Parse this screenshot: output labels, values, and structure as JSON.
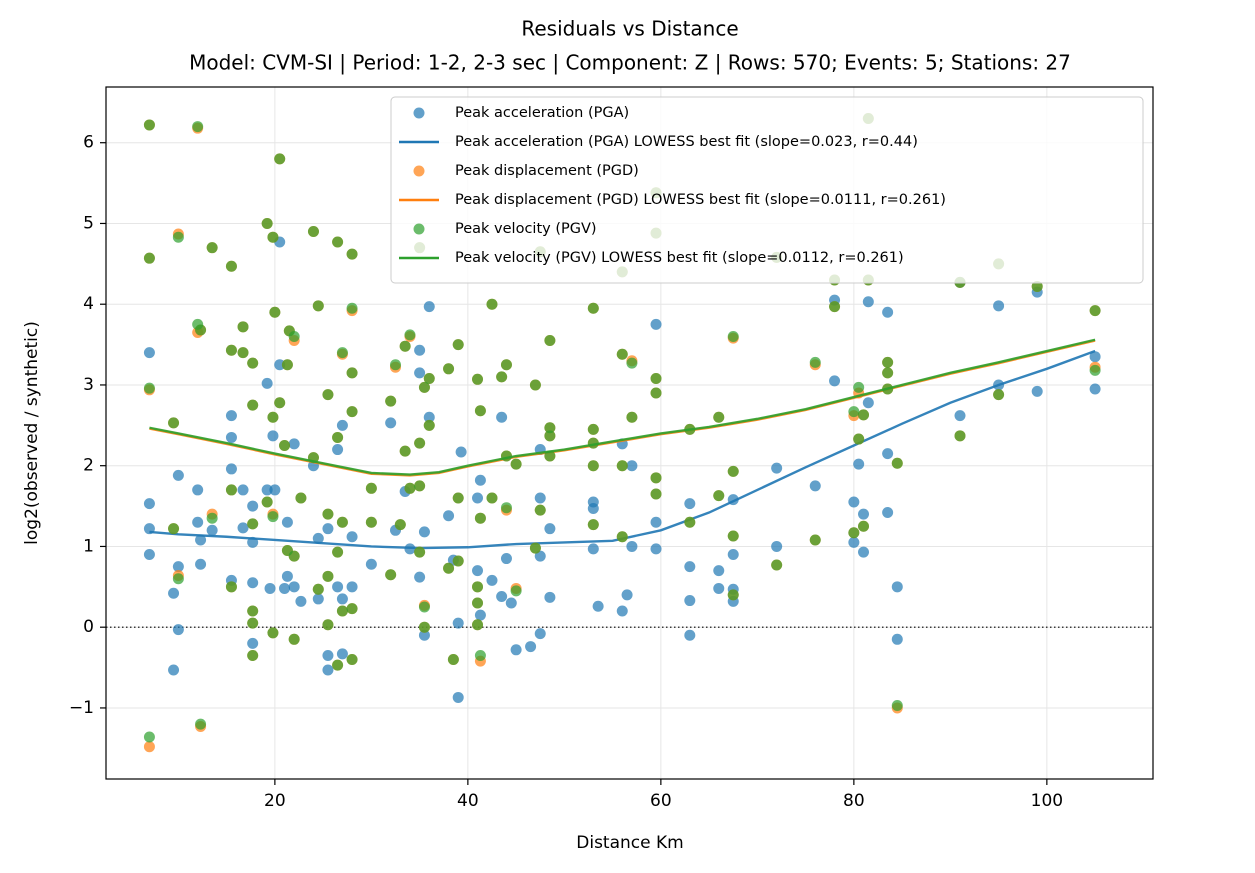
{
  "chart_data": {
    "type": "scatter",
    "title": "Residuals vs Distance",
    "subtitle": "Model: CVM-SI | Period: 1-2, 2-3 sec | Component: Z | Rows: 570; Events: 5; Stations: 27",
    "x_label": "Distance Km",
    "y_label": "log2(observed / synthetic)",
    "xlim": [
      2.5,
      111
    ],
    "ylim": [
      -1.88,
      6.69
    ],
    "xticks": [
      20,
      40,
      60,
      80,
      100
    ],
    "yticks": [
      {
        "value": -1,
        "label": "−1"
      },
      0,
      1,
      2,
      3,
      4,
      5,
      6
    ],
    "grid": true,
    "reference_line": 0,
    "legend": "upper right",
    "series": [
      {
        "name": "Peak acceleration (PGA)",
        "type": "scatter",
        "color": "#1f77b4",
        "x": [
          7,
          7,
          7,
          7,
          9.5,
          9.5,
          10,
          10,
          10,
          12,
          12,
          12.3,
          12.3,
          13.5,
          15.5,
          15.5,
          15.5,
          15.5,
          16.7,
          16.7,
          17.7,
          17.7,
          17.7,
          17.7,
          19.2,
          19.2,
          19.5,
          19.8,
          20,
          20.5,
          20.5,
          21,
          21.3,
          21.3,
          22,
          22,
          22.7,
          24,
          24.5,
          24.5,
          25.5,
          25.5,
          25.5,
          26.5,
          26.5,
          27,
          27,
          27,
          28,
          28,
          30,
          32,
          32.5,
          33.5,
          34,
          35,
          35,
          35,
          35.5,
          35.5,
          36,
          36,
          38,
          38.5,
          39,
          39,
          39.3,
          41,
          41,
          41.3,
          41.3,
          42.5,
          43.5,
          43.5,
          44,
          44.5,
          45,
          46.5,
          47.5,
          47.5,
          47.5,
          47.5,
          48.5,
          48.5,
          53,
          53,
          53,
          53.5,
          56,
          56,
          56.5,
          57,
          57,
          59.5,
          59.5,
          59.5,
          63,
          63,
          63,
          63,
          66,
          66,
          67.5,
          67.5,
          67.5,
          67.5,
          72,
          72,
          76,
          78,
          78,
          80,
          80,
          80.5,
          81,
          81,
          81.5,
          81.5,
          83.5,
          83.5,
          83.5,
          84.5,
          84.5,
          91,
          91,
          95,
          95,
          99,
          99,
          105,
          105
        ],
        "values": [
          3.4,
          1.53,
          1.22,
          0.9,
          -0.53,
          0.42,
          1.88,
          0.75,
          -0.03,
          1.7,
          1.3,
          1.08,
          0.78,
          1.2,
          1.96,
          2.35,
          2.62,
          0.58,
          1.7,
          1.23,
          1.5,
          1.05,
          0.55,
          -0.2,
          3.02,
          1.7,
          0.48,
          2.37,
          1.7,
          4.77,
          3.25,
          0.48,
          1.3,
          0.63,
          2.27,
          0.5,
          0.32,
          2.0,
          1.1,
          0.35,
          1.22,
          -0.35,
          -0.53,
          2.2,
          0.5,
          2.5,
          0.35,
          -0.33,
          1.12,
          0.5,
          0.78,
          2.53,
          1.2,
          1.68,
          0.97,
          3.43,
          3.15,
          0.62,
          1.18,
          -0.1,
          3.97,
          2.6,
          1.38,
          0.83,
          -0.87,
          0.05,
          2.17,
          1.6,
          0.7,
          1.82,
          0.15,
          0.58,
          2.6,
          0.38,
          0.85,
          0.3,
          -0.28,
          -0.24,
          2.2,
          1.6,
          0.88,
          -0.08,
          0.37,
          1.22,
          1.55,
          1.47,
          0.97,
          0.26,
          2.27,
          0.2,
          0.4,
          1.0,
          2.0,
          3.75,
          1.3,
          0.97,
          0.75,
          0.33,
          -0.1,
          1.53,
          0.48,
          0.7,
          0.47,
          0.32,
          0.9,
          1.58,
          1.97,
          1.0,
          1.75,
          4.05,
          3.05,
          1.55,
          1.05,
          2.02,
          1.4,
          0.93,
          4.03,
          2.78,
          3.9,
          2.15,
          1.42,
          0.5,
          -0.15,
          4.27,
          2.62,
          3.98,
          3.0,
          4.15,
          2.92,
          3.35,
          2.95
        ]
      },
      {
        "name": "Peak acceleration (PGA) LOWESS best fit (slope=0.023, r=0.44)",
        "type": "line",
        "color": "#1f77b4",
        "x": [
          7,
          10,
          15,
          20,
          25,
          30,
          35,
          40,
          45,
          50,
          55,
          60,
          65,
          70,
          75,
          80,
          85,
          90,
          95,
          100,
          105
        ],
        "values": [
          1.18,
          1.15,
          1.12,
          1.08,
          1.04,
          1.0,
          0.98,
          0.99,
          1.03,
          1.05,
          1.07,
          1.2,
          1.42,
          1.7,
          1.98,
          2.25,
          2.52,
          2.78,
          3.0,
          3.2,
          3.42
        ]
      },
      {
        "name": "Peak displacement (PGD)",
        "type": "scatter",
        "color": "#ff7f0e",
        "x": [
          7,
          7,
          7,
          7,
          9.5,
          9.5,
          10,
          10,
          12,
          12,
          12.3,
          12.3,
          13.5,
          13.5,
          15.5,
          15.5,
          15.5,
          15.5,
          16.7,
          16.7,
          17.7,
          17.7,
          17.7,
          17.7,
          17.7,
          17.7,
          19.2,
          19.2,
          19.8,
          19.8,
          19.8,
          19.8,
          20,
          20.5,
          20.5,
          21,
          21.3,
          21.3,
          21.5,
          22,
          22,
          22,
          22.7,
          24,
          24,
          24.5,
          24.5,
          25.5,
          25.5,
          25.5,
          25.5,
          26.5,
          26.5,
          26.5,
          26.5,
          27,
          27,
          27,
          28,
          28,
          28,
          28,
          28,
          28,
          30,
          30,
          32,
          32,
          32.5,
          33,
          33.5,
          33.5,
          34,
          34,
          35,
          35,
          35,
          35,
          35.5,
          35.5,
          35.5,
          36,
          36,
          38,
          38,
          38.5,
          39,
          39,
          39,
          41,
          41,
          41,
          41,
          41.3,
          41.3,
          41.3,
          42.5,
          42.5,
          43.5,
          44,
          44,
          44,
          45,
          45,
          47,
          47,
          47.5,
          47.5,
          48.5,
          48.5,
          48.5,
          48.5,
          53,
          53,
          53,
          53,
          53,
          56,
          56,
          56,
          56,
          57,
          57,
          59.5,
          59.5,
          59.5,
          59.5,
          59.5,
          59.5,
          63,
          63,
          66,
          66,
          67.5,
          67.5,
          67.5,
          67.5,
          72,
          72,
          76,
          76,
          78,
          78,
          80,
          80,
          80.5,
          80.5,
          81,
          81,
          81.5,
          81.5,
          83.5,
          83.5,
          83.5,
          84.5,
          84.5,
          91,
          91,
          95,
          95,
          99,
          105,
          105
        ],
        "values": [
          6.22,
          4.57,
          2.94,
          -1.48,
          2.53,
          1.22,
          4.87,
          0.64,
          6.18,
          3.65,
          3.68,
          -1.23,
          4.7,
          1.4,
          4.47,
          3.43,
          1.7,
          0.5,
          3.72,
          3.4,
          3.27,
          2.75,
          1.28,
          0.2,
          0.05,
          -0.35,
          5.0,
          1.55,
          4.83,
          2.6,
          1.4,
          -0.07,
          3.9,
          5.8,
          2.78,
          2.25,
          3.25,
          0.95,
          3.67,
          3.55,
          0.88,
          -0.15,
          1.6,
          4.9,
          2.1,
          3.98,
          0.47,
          2.88,
          1.4,
          0.63,
          0.03,
          4.77,
          2.35,
          0.93,
          -0.47,
          3.38,
          1.3,
          0.2,
          4.62,
          3.92,
          3.15,
          2.67,
          0.23,
          -0.4,
          1.72,
          1.3,
          2.8,
          0.65,
          3.22,
          1.27,
          3.48,
          2.18,
          3.6,
          1.72,
          4.7,
          2.28,
          1.75,
          0.93,
          0.27,
          0.0,
          2.97,
          3.08,
          2.5,
          3.2,
          0.73,
          -0.4,
          3.5,
          1.6,
          0.82,
          3.07,
          0.5,
          0.3,
          0.03,
          2.68,
          1.35,
          -0.42,
          4.0,
          1.6,
          3.1,
          3.25,
          2.12,
          1.45,
          2.02,
          0.48,
          3.0,
          0.98,
          4.65,
          1.45,
          3.55,
          2.47,
          2.12,
          2.37,
          3.95,
          2.45,
          2.28,
          2.0,
          1.27,
          4.4,
          3.38,
          2.0,
          1.12,
          3.3,
          2.6,
          5.38,
          4.88,
          3.08,
          2.9,
          1.85,
          1.65,
          2.45,
          1.3,
          2.6,
          1.63,
          3.58,
          1.93,
          1.13,
          0.4,
          4.58,
          0.77,
          3.25,
          1.08,
          4.3,
          3.97,
          2.62,
          1.17,
          2.9,
          2.33,
          2.63,
          1.25,
          6.3,
          4.3,
          3.28,
          3.15,
          2.95,
          2.03,
          -1.0,
          4.27,
          2.37,
          4.5,
          2.88,
          4.22,
          3.92,
          3.22
        ]
      },
      {
        "name": "Peak displacement (PGD) LOWESS best fit (slope=0.0111, r=0.261)",
        "type": "line",
        "color": "#ff7f0e",
        "x": [
          7,
          10,
          15,
          20,
          25,
          30,
          34,
          37,
          40,
          45,
          50,
          55,
          60,
          65,
          70,
          75,
          80,
          85,
          90,
          95,
          100,
          105
        ],
        "values": [
          2.46,
          2.39,
          2.27,
          2.14,
          2.02,
          1.9,
          1.88,
          1.91,
          1.99,
          2.11,
          2.19,
          2.29,
          2.39,
          2.47,
          2.57,
          2.69,
          2.84,
          2.99,
          3.14,
          3.27,
          3.41,
          3.55
        ]
      },
      {
        "name": "Peak velocity (PGV)",
        "type": "scatter",
        "color": "#2ca02c",
        "x": [
          7,
          7,
          7,
          7,
          9.5,
          9.5,
          10,
          10,
          12,
          12,
          12.3,
          12.3,
          13.5,
          13.5,
          15.5,
          15.5,
          15.5,
          15.5,
          16.7,
          16.7,
          17.7,
          17.7,
          17.7,
          17.7,
          17.7,
          17.7,
          19.2,
          19.2,
          19.8,
          19.8,
          19.8,
          19.8,
          20,
          20.5,
          20.5,
          21,
          21.3,
          21.3,
          21.5,
          22,
          22,
          22,
          22.7,
          24,
          24,
          24.5,
          24.5,
          25.5,
          25.5,
          25.5,
          25.5,
          26.5,
          26.5,
          26.5,
          26.5,
          27,
          27,
          27,
          28,
          28,
          28,
          28,
          28,
          28,
          30,
          30,
          32,
          32,
          32.5,
          33,
          33.5,
          33.5,
          34,
          34,
          35,
          35,
          35,
          35,
          35.5,
          35.5,
          35.5,
          36,
          36,
          38,
          38,
          38.5,
          39,
          39,
          39,
          41,
          41,
          41,
          41,
          41.3,
          41.3,
          41.3,
          42.5,
          42.5,
          43.5,
          44,
          44,
          44,
          45,
          45,
          47,
          47,
          47.5,
          47.5,
          48.5,
          48.5,
          48.5,
          48.5,
          53,
          53,
          53,
          53,
          53,
          56,
          56,
          56,
          56,
          57,
          57,
          59.5,
          59.5,
          59.5,
          59.5,
          59.5,
          59.5,
          63,
          63,
          66,
          66,
          67.5,
          67.5,
          67.5,
          67.5,
          72,
          72,
          76,
          76,
          78,
          78,
          80,
          80,
          80.5,
          80.5,
          81,
          81,
          81.5,
          81.5,
          83.5,
          83.5,
          83.5,
          84.5,
          84.5,
          91,
          91,
          95,
          95,
          99,
          105,
          105
        ],
        "values": [
          6.22,
          4.57,
          2.96,
          -1.36,
          2.53,
          1.22,
          4.83,
          0.6,
          6.2,
          3.75,
          3.68,
          -1.2,
          4.7,
          1.35,
          4.47,
          3.43,
          1.7,
          0.5,
          3.72,
          3.4,
          3.27,
          2.75,
          1.28,
          0.2,
          0.05,
          -0.35,
          5.0,
          1.55,
          4.83,
          2.6,
          1.37,
          -0.07,
          3.9,
          5.8,
          2.78,
          2.25,
          3.25,
          0.95,
          3.67,
          3.6,
          0.88,
          -0.15,
          1.6,
          4.9,
          2.1,
          3.98,
          0.47,
          2.88,
          1.4,
          0.63,
          0.03,
          4.77,
          2.35,
          0.93,
          -0.47,
          3.4,
          1.3,
          0.2,
          4.62,
          3.95,
          3.15,
          2.67,
          0.23,
          -0.4,
          1.72,
          1.3,
          2.8,
          0.65,
          3.25,
          1.27,
          3.48,
          2.18,
          3.62,
          1.72,
          4.7,
          2.28,
          1.75,
          0.93,
          0.25,
          0.0,
          2.97,
          3.08,
          2.5,
          3.2,
          0.73,
          -0.4,
          3.5,
          1.6,
          0.82,
          3.07,
          0.5,
          0.3,
          0.03,
          2.68,
          1.35,
          -0.35,
          4.0,
          1.6,
          3.1,
          3.25,
          2.12,
          1.48,
          2.02,
          0.45,
          3.0,
          0.98,
          4.65,
          1.45,
          3.55,
          2.47,
          2.12,
          2.37,
          3.95,
          2.45,
          2.28,
          2.0,
          1.27,
          4.4,
          3.38,
          2.0,
          1.12,
          3.27,
          2.6,
          5.38,
          4.88,
          3.08,
          2.9,
          1.85,
          1.65,
          2.45,
          1.3,
          2.6,
          1.63,
          3.6,
          1.93,
          1.13,
          0.4,
          4.58,
          0.77,
          3.28,
          1.08,
          4.3,
          3.97,
          2.67,
          1.17,
          2.97,
          2.33,
          2.63,
          1.25,
          6.3,
          4.3,
          3.28,
          3.15,
          2.95,
          2.03,
          -0.97,
          4.27,
          2.37,
          4.5,
          2.88,
          4.22,
          3.92,
          3.18
        ]
      },
      {
        "name": "Peak velocity (PGV) LOWESS best fit (slope=0.0112, r=0.261)",
        "type": "line",
        "color": "#2ca02c",
        "x": [
          7,
          10,
          15,
          20,
          25,
          30,
          34,
          37,
          40,
          45,
          50,
          55,
          60,
          65,
          70,
          75,
          80,
          85,
          90,
          95,
          100,
          105
        ],
        "values": [
          2.47,
          2.4,
          2.28,
          2.15,
          2.03,
          1.91,
          1.89,
          1.92,
          2.0,
          2.12,
          2.2,
          2.3,
          2.4,
          2.48,
          2.58,
          2.7,
          2.85,
          3.0,
          3.15,
          3.28,
          3.42,
          3.56
        ]
      }
    ]
  }
}
